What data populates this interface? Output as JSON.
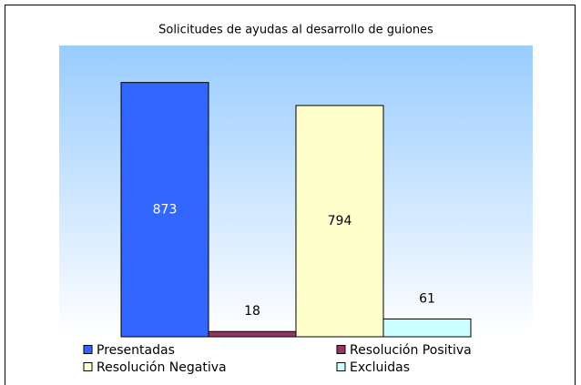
{
  "chart_data": {
    "type": "bar",
    "title": "Solicitudes de ayudas al desarrollo de guiones",
    "series": [
      {
        "name": "Presentadas",
        "color": "#3366ff",
        "values": [
          873
        ]
      },
      {
        "name": "Resolución Positiva",
        "color": "#993366",
        "values": [
          18
        ]
      },
      {
        "name": "Resolución Negativa",
        "color": "#ffffcc",
        "values": [
          794
        ]
      },
      {
        "name": "Excluidas",
        "color": "#ccffff",
        "values": [
          61
        ]
      }
    ],
    "ylim": [
      0,
      1000
    ],
    "grid": false
  }
}
